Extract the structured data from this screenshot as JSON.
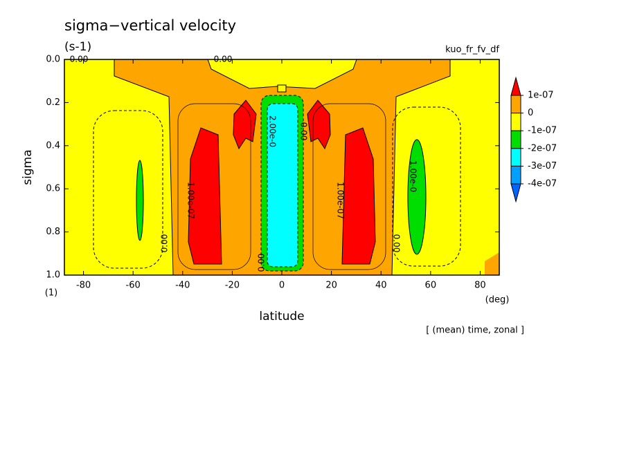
{
  "chart_data": {
    "type": "contour",
    "title": "sigma−vertical velocity",
    "subtitle": "(s-1)",
    "experiment": "kuo_fr_fv_df",
    "x_label": "latitude",
    "x_unit": "(deg)",
    "y_label": "sigma",
    "y_unit": "(1)",
    "note": "[ (mean) time, zonal ]",
    "xlim": [
      -87.7,
      87.7
    ],
    "xticks": [
      -80,
      -60,
      -40,
      -20,
      0,
      20,
      40,
      60,
      80
    ],
    "ylim": [
      0,
      1
    ],
    "y_reversed": true,
    "yticks": [
      {
        "value": 0,
        "label": "0.0"
      },
      0.2,
      0.4,
      0.6,
      0.8,
      {
        "value": 1,
        "label": "1.0"
      }
    ],
    "levels": [
      {
        "value": 1e-07,
        "label": "1e-07"
      },
      0,
      {
        "value": -1e-07,
        "label": "-1e-07"
      },
      {
        "value": -2e-07,
        "label": "-2e-07"
      },
      {
        "value": -3e-07,
        "label": "-3e-07"
      },
      {
        "value": -4e-07,
        "label": "-4e-07"
      }
    ],
    "colors": [
      "#ff0000",
      "#ffa500",
      "#ffff00",
      "#00dd00",
      "#00ffff",
      "#00a0ff",
      "#0064ff"
    ],
    "contour_labels": [
      "0.00",
      "0.00",
      "1.00e-07",
      "2.00e-0",
      "0.00",
      "1.00e-07",
      "1.00e-0",
      "0.00",
      "0.00",
      "0.00"
    ]
  }
}
